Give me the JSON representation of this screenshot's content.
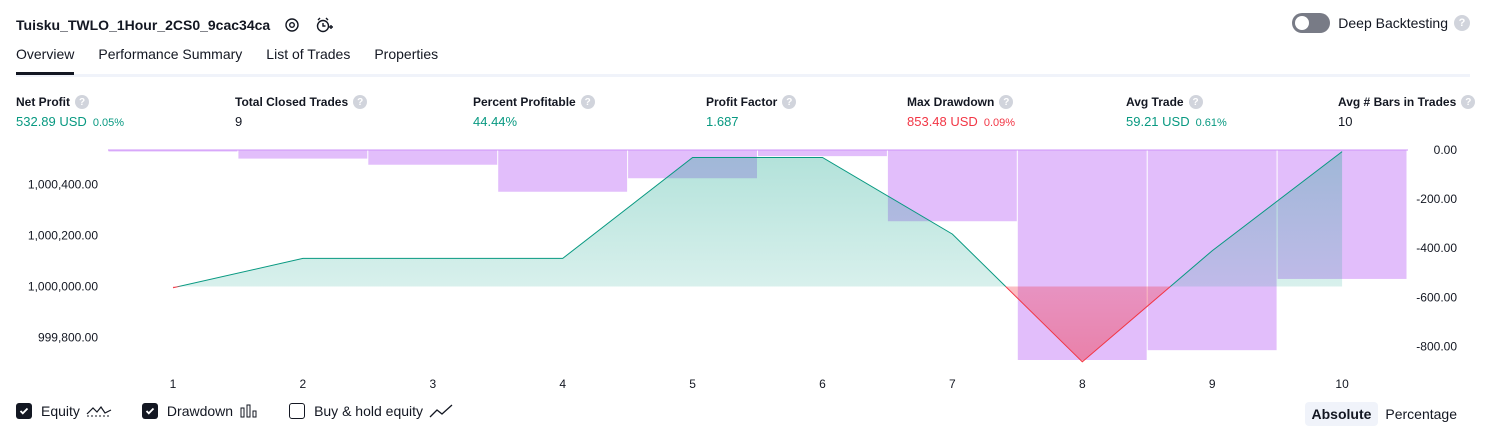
{
  "header": {
    "title": "Tuisku_TWLO_1Hour_2CS0_9cac34ca",
    "deep_backtesting_label": "Deep Backtesting",
    "help_glyph": "?"
  },
  "tabs": [
    "Overview",
    "Performance Summary",
    "List of Trades",
    "Properties"
  ],
  "metrics": [
    {
      "label": "Net Profit",
      "value": "532.89 USD",
      "pct": "0.05%",
      "color": "#089981"
    },
    {
      "label": "Total Closed Trades",
      "value": "9",
      "pct": "",
      "color": "#131722"
    },
    {
      "label": "Percent Profitable",
      "value": "44.44%",
      "pct": "",
      "color": "#089981"
    },
    {
      "label": "Profit Factor",
      "value": "1.687",
      "pct": "",
      "color": "#089981"
    },
    {
      "label": "Max Drawdown",
      "value": "853.48 USD",
      "pct": "0.09%",
      "color": "#f23645"
    },
    {
      "label": "Avg Trade",
      "value": "59.21 USD",
      "pct": "0.61%",
      "color": "#089981"
    },
    {
      "label": "Avg # Bars in Trades",
      "value": "10",
      "pct": "",
      "color": "#131722"
    }
  ],
  "chart_data": {
    "type": "line",
    "x": [
      1,
      2,
      3,
      4,
      5,
      6,
      7,
      8,
      9,
      10
    ],
    "x_ticks": [
      "1",
      "2",
      "3",
      "4",
      "5",
      "6",
      "7",
      "8",
      "9",
      "10"
    ],
    "series": [
      {
        "values": [
          999995,
          1000110,
          1000110,
          1000110,
          1000505,
          1000505,
          1000205,
          999705,
          1000140,
          1000528
        ]
      },
      {
        "values": [
          0,
          -35,
          -60,
          -170,
          -115,
          -25,
          -290,
          -855,
          -815,
          -525
        ]
      }
    ],
    "left_axis": {
      "ticks": [
        "1,000,400.00",
        "1,000,200.00",
        "1,000,000.00",
        "999,800.00"
      ],
      "tick_values": [
        1000400,
        1000200,
        1000000,
        999800
      ]
    },
    "right_axis": {
      "ticks": [
        "0.00",
        "-200.00",
        "-400.00",
        "-600.00",
        "-800.00"
      ],
      "tick_values": [
        0,
        -200,
        -400,
        -600,
        -800
      ]
    },
    "equity_baseline": 1000000,
    "colors": {
      "equity_line": "#089981",
      "equity_loss_line": "#f23645",
      "equity_fill": "#22ab94",
      "drawdown_bar": "#ce93f8"
    }
  },
  "legend": [
    {
      "label": "Equity",
      "checked": true,
      "icon": "equity-icon"
    },
    {
      "label": "Drawdown",
      "checked": true,
      "icon": "drawdown-icon"
    },
    {
      "label": "Buy & hold equity",
      "checked": false,
      "icon": "buy-hold-icon"
    }
  ],
  "mode": {
    "absolute": "Absolute",
    "percentage": "Percentage"
  }
}
